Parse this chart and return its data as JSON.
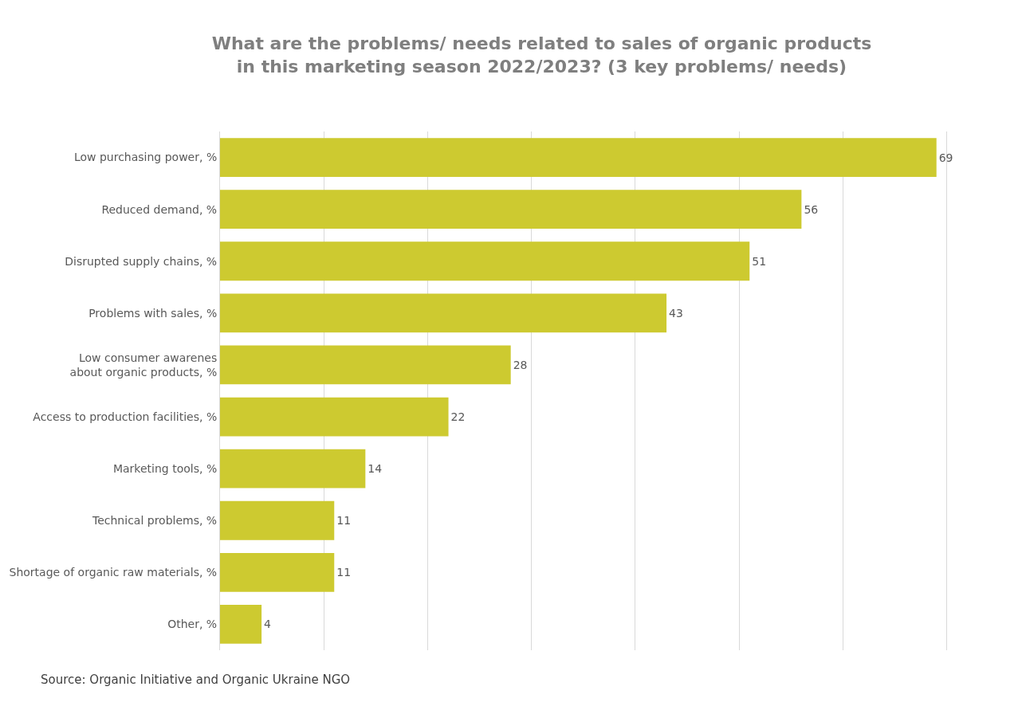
{
  "chart_data": {
    "type": "bar",
    "orientation": "horizontal",
    "title": "What are the problems/ needs related to sales of organic products\nin this marketing season 2022/2023? (3 key problems/ needs)",
    "categories": [
      "Low purchasing power, %",
      "Reduced demand, %",
      "Disrupted supply chains, %",
      "Problems with sales, %",
      "Low consumer awarenes\nabout organic products, %",
      "Access to production facilities, %",
      "Marketing tools, %",
      "Technical problems, %",
      "Shortage of organic raw materials, %",
      "Other, %"
    ],
    "values": [
      69,
      56,
      51,
      43,
      28,
      22,
      14,
      11,
      11,
      4
    ],
    "color": "#cdca30",
    "grid": "x",
    "tick_labels": "y",
    "data_labels": true,
    "annotations": [
      "Source: Organic Initiative and Organic Ukraine NGO"
    ]
  }
}
